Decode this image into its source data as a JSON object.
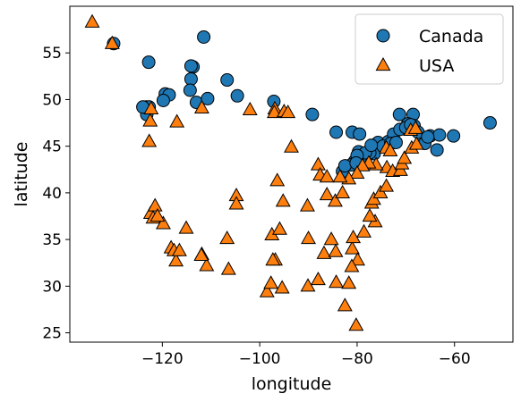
{
  "chart_data": {
    "type": "scatter",
    "title": "",
    "xlabel": "longitude",
    "ylabel": "latitude",
    "xlim": [
      -139,
      -48
    ],
    "ylim": [
      24,
      60
    ],
    "xticks": [
      -120,
      -100,
      -80,
      -60
    ],
    "yticks": [
      25,
      30,
      35,
      40,
      45,
      50,
      55
    ],
    "grid": false,
    "legend_position": "top-right",
    "series": [
      {
        "name": "Canada",
        "marker": "circle",
        "color": "#1f77b4",
        "points": [
          [
            -130,
            56
          ],
          [
            -122.8,
            54
          ],
          [
            -111.5,
            56.7
          ],
          [
            -119.4,
            50.6
          ],
          [
            -118.6,
            50.5
          ],
          [
            -119.8,
            49.9
          ],
          [
            -123.3,
            49.2
          ],
          [
            -123.2,
            48.4
          ],
          [
            -122.7,
            49.2
          ],
          [
            -124.0,
            49.2
          ],
          [
            -113.7,
            53.5
          ],
          [
            -114.1,
            53.6
          ],
          [
            -114.1,
            52.2
          ],
          [
            -114.3,
            51.0
          ],
          [
            -113.0,
            49.7
          ],
          [
            -110.7,
            50.1
          ],
          [
            -106.7,
            52.1
          ],
          [
            -104.6,
            50.4
          ],
          [
            -97.1,
            49.8
          ],
          [
            -89.2,
            48.4
          ],
          [
            -84.3,
            46.5
          ],
          [
            -81.0,
            46.5
          ],
          [
            -79.5,
            46.3
          ],
          [
            -79.7,
            44.4
          ],
          [
            -79.4,
            43.7
          ],
          [
            -80.5,
            43.4
          ],
          [
            -81.2,
            43.0
          ],
          [
            -83.0,
            42.3
          ],
          [
            -82.5,
            42.9
          ],
          [
            -79.9,
            43.3
          ],
          [
            -76.5,
            44.2
          ],
          [
            -75.7,
            45.4
          ],
          [
            -73.6,
            45.5
          ],
          [
            -72.5,
            46.3
          ],
          [
            -71.2,
            46.8
          ],
          [
            -71.3,
            48.4
          ],
          [
            -68.5,
            48.4
          ],
          [
            -69.6,
            47.4
          ],
          [
            -68.3,
            47.2
          ],
          [
            -66.6,
            45.9
          ],
          [
            -66.1,
            45.3
          ],
          [
            -65.0,
            46.1
          ],
          [
            -63.6,
            44.6
          ],
          [
            -63.1,
            46.2
          ],
          [
            -60.2,
            46.1
          ],
          [
            -52.7,
            47.5
          ],
          [
            -74.7,
            45.0
          ],
          [
            -73.1,
            45.3
          ],
          [
            -77.4,
            44.3
          ],
          [
            -78.3,
            44.3
          ],
          [
            -80.0,
            44.0
          ],
          [
            -80.2,
            43.2
          ],
          [
            -72.0,
            45.4
          ],
          [
            -70.0,
            47.0
          ],
          [
            -69.0,
            47.3
          ],
          [
            -67.5,
            46.5
          ],
          [
            -65.5,
            46.0
          ],
          [
            -77.1,
            45.1
          ]
        ]
      },
      {
        "name": "USA",
        "marker": "triangle",
        "color": "#ff7f0e",
        "points": [
          [
            -134.4,
            58.3
          ],
          [
            -130.3,
            56.0
          ],
          [
            -122.3,
            49.0
          ],
          [
            -122.7,
            45.5
          ],
          [
            -122.5,
            47.7
          ],
          [
            -117.0,
            47.6
          ],
          [
            -111.9,
            49.1
          ],
          [
            -102.0,
            48.9
          ],
          [
            -96.9,
            49.0
          ],
          [
            -97.0,
            48.6
          ],
          [
            -95.0,
            48.7
          ],
          [
            -94.2,
            48.6
          ],
          [
            -93.5,
            44.9
          ],
          [
            -96.4,
            41.3
          ],
          [
            -95.2,
            39.1
          ],
          [
            -88.0,
            43.0
          ],
          [
            -87.6,
            41.9
          ],
          [
            -86.2,
            39.8
          ],
          [
            -84.5,
            39.1
          ],
          [
            -85.3,
            35.0
          ],
          [
            -86.8,
            33.5
          ],
          [
            -90.2,
            38.6
          ],
          [
            -90.0,
            35.1
          ],
          [
            -84.4,
            33.7
          ],
          [
            -81.0,
            34.0
          ],
          [
            -80.8,
            35.2
          ],
          [
            -78.6,
            35.8
          ],
          [
            -76.3,
            36.9
          ],
          [
            -77.4,
            37.5
          ],
          [
            -77.0,
            38.9
          ],
          [
            -76.6,
            39.3
          ],
          [
            -75.2,
            40.0
          ],
          [
            -74.0,
            40.7
          ],
          [
            -73.9,
            42.7
          ],
          [
            -72.7,
            42.3
          ],
          [
            -71.1,
            42.4
          ],
          [
            -70.8,
            43.1
          ],
          [
            -70.3,
            43.7
          ],
          [
            -68.8,
            44.8
          ],
          [
            -69.0,
            46.7
          ],
          [
            -68.0,
            46.9
          ],
          [
            -67.8,
            45.2
          ],
          [
            -74.0,
            44.8
          ],
          [
            -73.2,
            44.5
          ],
          [
            -76.1,
            43.0
          ],
          [
            -77.6,
            43.2
          ],
          [
            -78.9,
            42.9
          ],
          [
            -80.0,
            42.1
          ],
          [
            -81.7,
            41.5
          ],
          [
            -83.5,
            41.7
          ],
          [
            -83.0,
            40.0
          ],
          [
            -86.2,
            41.7
          ],
          [
            -122.4,
            37.8
          ],
          [
            -121.5,
            38.6
          ],
          [
            -121.9,
            37.3
          ],
          [
            -119.8,
            36.7
          ],
          [
            -118.2,
            34.1
          ],
          [
            -117.6,
            33.8
          ],
          [
            -117.2,
            32.7
          ],
          [
            -116.5,
            33.8
          ],
          [
            -115.1,
            36.2
          ],
          [
            -111.9,
            33.4
          ],
          [
            -110.9,
            32.2
          ],
          [
            -106.7,
            35.1
          ],
          [
            -106.4,
            31.8
          ],
          [
            -104.8,
            39.7
          ],
          [
            -104.8,
            38.8
          ],
          [
            -97.5,
            35.5
          ],
          [
            -95.9,
            36.1
          ],
          [
            -96.8,
            32.8
          ],
          [
            -97.3,
            32.8
          ],
          [
            -98.5,
            29.4
          ],
          [
            -97.7,
            30.3
          ],
          [
            -95.4,
            29.8
          ],
          [
            -90.1,
            30.0
          ],
          [
            -88.0,
            30.7
          ],
          [
            -84.3,
            30.4
          ],
          [
            -81.7,
            30.3
          ],
          [
            -82.5,
            27.9
          ],
          [
            -80.2,
            25.8
          ],
          [
            -79.9,
            32.8
          ],
          [
            -81.1,
            32.1
          ],
          [
            -112.0,
            33.3
          ],
          [
            -121.0,
            37.5
          ]
        ]
      }
    ]
  }
}
